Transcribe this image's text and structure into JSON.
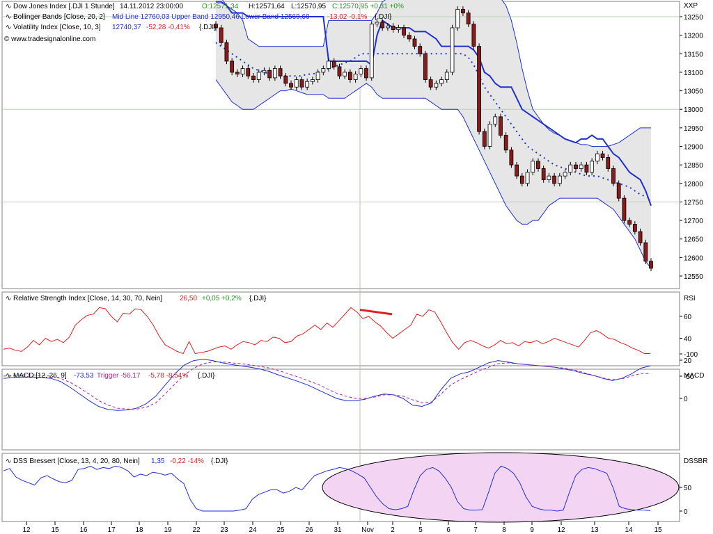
{
  "colors": {
    "candle_up": "#ffffff",
    "candle_down": "#8b1a1a",
    "candle_outline": "#000000",
    "bollinger": "#1f2fd1",
    "volatility": "#1f2fd1",
    "rsi": "#e02020",
    "rsi_annotation": "#e02020",
    "macd": "#1f2fd1",
    "trigger": "#b0208e",
    "dss": "#1f2fd1",
    "dss_highlight_fill": "#f3d4f3",
    "band_fill": "#e6e6e6",
    "up_text": "#1a9a1a",
    "down_text": "#e02020"
  },
  "legend": {
    "main": {
      "name": "Dow Jones Index [.DJI  1 Stunde]",
      "datetime": "14.11.2012 23:00:00",
      "open": "O:12571,34",
      "high": "H:12571,64",
      "low": "L:12570,95",
      "close": "C:12570,95 +0,31 +0%"
    },
    "bollinger": {
      "name": "Bollinger Bands [Close, 20, 2]",
      "values": "Mid Line 12760,03 Upper Band 12950,46 Lower Band 12569,60",
      "change": "-13,02 -0,1%",
      "suffix": "{.DJI}"
    },
    "volatility": {
      "name": "Volatility Index [Close, 10, 3]",
      "value": "12740,37",
      "change": "-52,28 -0,41%",
      "suffix": "{.DJI}"
    },
    "source": "© www.tradesignalonline.com",
    "rsi": {
      "name": "Relative Strength Index [Close, 14, 30, 70, Nein]",
      "value": "26,50",
      "change": "+0,05 +0,2%",
      "suffix": "{.DJI}"
    },
    "macd": {
      "name": "MACD [12, 26, 9]",
      "value": "-73,53",
      "trigger": "Trigger -56,17",
      "change": "-5,78 -8,54%",
      "suffix": "{.DJI}"
    },
    "dss": {
      "name": "DSS Bressert [Close, 13, 4, 20, 80, Nein]",
      "value": "1,35",
      "change": "-0,22 -14%",
      "suffix": "{.DJI}"
    }
  },
  "chart_data": [
    {
      "type": "candlestick",
      "panel": "main",
      "axis_title": "XXP",
      "y_ticks": [
        13250,
        13200,
        13150,
        13100,
        13050,
        13000,
        12950,
        12900,
        12850,
        12800,
        12750,
        12700,
        12650,
        12600,
        12550
      ],
      "ylim": [
        12520,
        13280
      ],
      "grid": true,
      "x_tick_labels": [
        "12",
        "15",
        "16",
        "17",
        "18",
        "19",
        "22",
        "23",
        "24",
        "25",
        "26",
        "31",
        "Nov",
        "2",
        "5",
        "6",
        "7",
        "8",
        "9",
        "12",
        "13",
        "14",
        "15"
      ],
      "close_series": [
        13220,
        13180,
        13130,
        13100,
        13095,
        13110,
        13090,
        13080,
        13100,
        13105,
        13085,
        13110,
        13090,
        13070,
        13060,
        13080,
        13060,
        13075,
        13080,
        13100,
        13110,
        13130,
        13115,
        13090,
        13100,
        13080,
        13095,
        13110,
        13085,
        13230,
        13235,
        13220,
        13225,
        13215,
        13220,
        13200,
        13190,
        13170,
        13150,
        13080,
        13060,
        13070,
        13080,
        13100,
        13220,
        13270,
        13260,
        13230,
        13170,
        12940,
        12900,
        12960,
        12980,
        12930,
        12890,
        12850,
        12820,
        12800,
        12830,
        12860,
        12840,
        12810,
        12820,
        12800,
        12820,
        12830,
        12850,
        12840,
        12850,
        12830,
        12860,
        12880,
        12870,
        12840,
        12800,
        12760,
        12700,
        12690,
        12670,
        12640,
        12590,
        12571
      ],
      "bollinger_upper": [
        13330,
        13300,
        13280,
        13270,
        13260,
        13240,
        13190,
        13180,
        13170,
        13170,
        13170,
        13170,
        13170,
        13170,
        13170,
        13170,
        13170,
        13170,
        13170,
        13170,
        13170,
        13240,
        13240,
        13240,
        13240,
        13240,
        13240,
        13240,
        13240,
        13240,
        13260,
        13290,
        13300,
        13310,
        13310,
        13310,
        13310,
        13310,
        13310,
        13310,
        13310,
        13310,
        13310,
        13310,
        13310,
        13310,
        13310,
        13310,
        13310,
        13310,
        13310,
        13310,
        13310,
        13300,
        13280,
        13240,
        13180,
        13110,
        13050,
        13000,
        12980,
        12960,
        12945,
        12935,
        12930,
        12920,
        12915,
        12910,
        12905,
        12905,
        12900,
        12900,
        12900,
        12900,
        12905,
        12910,
        12920,
        12930,
        12940,
        12950,
        12950,
        12950
      ],
      "bollinger_mid": [
        13180,
        13170,
        13160,
        13150,
        13140,
        13130,
        13120,
        13110,
        13105,
        13100,
        13095,
        13090,
        13090,
        13090,
        13090,
        13090,
        13090,
        13095,
        13095,
        13100,
        13105,
        13110,
        13115,
        13120,
        13125,
        13130,
        13140,
        13150,
        13150,
        13150,
        13150,
        13150,
        13150,
        13150,
        13150,
        13150,
        13150,
        13150,
        13150,
        13150,
        13150,
        13150,
        13150,
        13150,
        13150,
        13150,
        13150,
        13140,
        13120,
        13090,
        13060,
        13040,
        13020,
        13000,
        12980,
        12960,
        12940,
        12920,
        12900,
        12890,
        12880,
        12870,
        12860,
        12850,
        12845,
        12840,
        12835,
        12830,
        12825,
        12820,
        12820,
        12820,
        12815,
        12810,
        12805,
        12800,
        12795,
        12790,
        12780,
        12770,
        12765,
        12760
      ],
      "bollinger_lower": [
        13080,
        13060,
        13040,
        13020,
        13010,
        13000,
        13000,
        13000,
        13010,
        13020,
        13030,
        13040,
        13050,
        13050,
        13055,
        13050,
        13045,
        13040,
        13040,
        13040,
        13040,
        13030,
        13030,
        13030,
        13030,
        13040,
        13050,
        13060,
        13070,
        13060,
        13040,
        13030,
        13030,
        13030,
        13030,
        13030,
        13030,
        13030,
        13030,
        13030,
        13020,
        13010,
        13000,
        13000,
        13000,
        13000,
        12980,
        12950,
        12920,
        12890,
        12860,
        12830,
        12800,
        12770,
        12740,
        12720,
        12700,
        12690,
        12690,
        12700,
        12700,
        12720,
        12740,
        12750,
        12760,
        12760,
        12760,
        12760,
        12760,
        12760,
        12760,
        12760,
        12750,
        12740,
        12730,
        12710,
        12690,
        12670,
        12650,
        12620,
        12590,
        12570
      ],
      "volatility_index": [
        13300,
        13300,
        13280,
        13260,
        13260,
        13260,
        13250,
        13250,
        13250,
        13250,
        13250,
        13250,
        13250,
        13250,
        13250,
        13250,
        13250,
        13250,
        13250,
        13250,
        13250,
        13130,
        13130,
        13130,
        13130,
        13130,
        13130,
        13130,
        13130,
        13120,
        13200,
        13240,
        13230,
        13220,
        13220,
        13220,
        13220,
        13210,
        13210,
        13210,
        13200,
        13190,
        13170,
        13170,
        13170,
        13170,
        13170,
        13170,
        13160,
        13140,
        13100,
        13090,
        13070,
        13060,
        13060,
        13060,
        13030,
        13000,
        12990,
        12980,
        12970,
        12960,
        12950,
        12940,
        12930,
        12920,
        12915,
        12910,
        12920,
        12920,
        12930,
        12920,
        12920,
        12900,
        12880,
        12870,
        12850,
        12830,
        12820,
        12810,
        12780,
        12740
      ]
    },
    {
      "type": "line",
      "panel": "rsi",
      "axis_title": "RSI",
      "y_ticks": [
        60,
        40,
        20
      ],
      "ylim": [
        15,
        75
      ],
      "values": [
        30,
        31,
        29,
        28,
        32,
        38,
        34,
        40,
        37,
        39,
        36,
        41,
        52,
        57,
        61,
        62,
        68,
        67,
        60,
        55,
        63,
        62,
        67,
        66,
        60,
        52,
        42,
        34,
        31,
        28,
        26,
        37,
        26,
        27,
        28,
        30,
        32,
        33,
        30,
        34,
        37,
        36,
        34,
        38,
        37,
        41,
        40,
        36,
        37,
        42,
        44,
        48,
        52,
        48,
        54,
        50,
        56,
        62,
        68,
        64,
        58,
        60,
        55,
        51,
        45,
        40,
        44,
        48,
        52,
        62,
        60,
        66,
        64,
        55,
        45,
        36,
        30,
        36,
        38,
        36,
        33,
        31,
        34,
        38,
        35,
        36,
        33,
        37,
        36,
        38,
        35,
        37,
        40,
        38,
        36,
        34,
        32,
        38,
        45,
        47,
        44,
        40,
        39,
        36,
        34,
        31,
        29,
        26,
        26
      ],
      "annotation": "trendline",
      "annotation_values": [
        66,
        62
      ]
    },
    {
      "type": "line",
      "panel": "macd",
      "axis_title": "MACD",
      "y_ticks": [
        0,
        -50,
        -100
      ],
      "ylim": [
        -110,
        25
      ],
      "series": [
        {
          "values": [
            -45,
            -47,
            -48,
            -48,
            -47,
            -45,
            -38,
            -25,
            -10,
            5,
            18,
            25,
            27,
            26,
            22,
            12,
            -5,
            -30,
            -55,
            -75,
            -85,
            -88,
            -85,
            -80,
            -76,
            -73,
            -70,
            -66,
            -60,
            -52,
            -45,
            -38,
            -30,
            -20,
            -10,
            0,
            5,
            5,
            2,
            -5,
            -10,
            -8,
            0,
            15,
            18,
            10,
            -20,
            -45,
            -55,
            -60,
            -70,
            -80,
            -85,
            -82,
            -78,
            -76,
            -74,
            -72,
            -70,
            -66,
            -62,
            -56,
            -52,
            -45,
            -40,
            -45,
            -55,
            -68,
            -73
          ]
        },
        {
          "values": [
            -50,
            -52,
            -53,
            -53,
            -52,
            -50,
            -45,
            -36,
            -24,
            -10,
            5,
            15,
            22,
            24,
            24,
            20,
            10,
            -10,
            -32,
            -52,
            -68,
            -78,
            -82,
            -82,
            -80,
            -78,
            -75,
            -72,
            -68,
            -62,
            -55,
            -48,
            -40,
            -32,
            -22,
            -12,
            -5,
            0,
            0,
            -3,
            -8,
            -8,
            -5,
            3,
            10,
            8,
            -10,
            -30,
            -42,
            -52,
            -62,
            -70,
            -78,
            -80,
            -78,
            -76,
            -74,
            -72,
            -70,
            -68,
            -64,
            -58,
            -52,
            -46,
            -42,
            -44,
            -50,
            -56,
            -56
          ]
        }
      ]
    },
    {
      "type": "line",
      "panel": "dss",
      "axis_title": "DSSBR",
      "y_ticks": [
        50,
        0
      ],
      "ylim": [
        -10,
        110
      ],
      "values": [
        85,
        90,
        72,
        65,
        60,
        55,
        70,
        75,
        68,
        62,
        60,
        65,
        88,
        90,
        95,
        88,
        92,
        90,
        95,
        92,
        85,
        72,
        78,
        75,
        82,
        80,
        76,
        80,
        68,
        58,
        25,
        5,
        0,
        0,
        0,
        0,
        0,
        0,
        2,
        5,
        25,
        35,
        40,
        45,
        45,
        38,
        42,
        50,
        45,
        60,
        75,
        80,
        85,
        88,
        92,
        90,
        85,
        78,
        70,
        50,
        30,
        15,
        5,
        3,
        5,
        10,
        45,
        75,
        88,
        92,
        85,
        70,
        50,
        20,
        5,
        2,
        2,
        3,
        40,
        80,
        95,
        90,
        80,
        60,
        30,
        10,
        5,
        2,
        2,
        0,
        2,
        40,
        75,
        88,
        92,
        90,
        85,
        80,
        50,
        10,
        5,
        3,
        2,
        2,
        1
      ]
    }
  ]
}
